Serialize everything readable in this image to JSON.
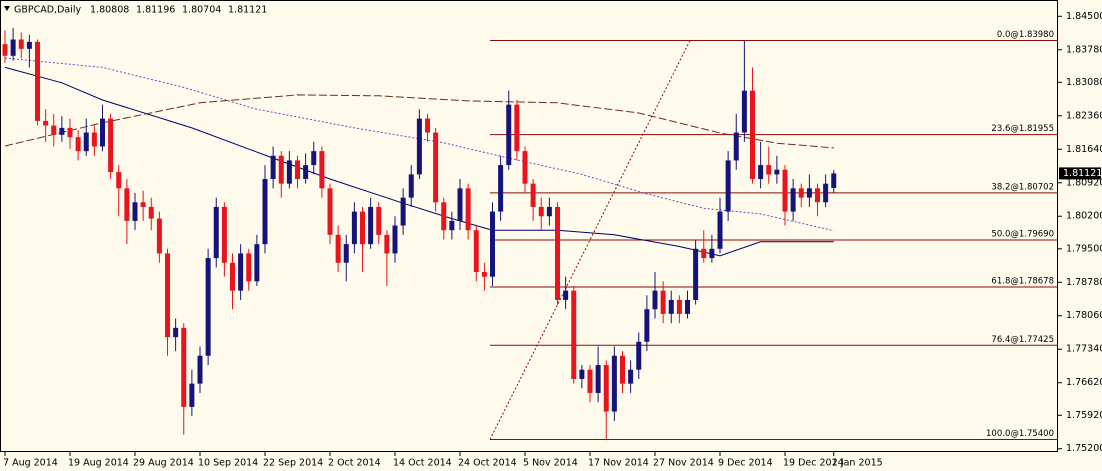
{
  "chart_data": {
    "type": "candlestick",
    "title": "GBPCAD,Daily",
    "quote": [
      1.80808,
      1.81196,
      1.80704,
      1.81121
    ],
    "current_price": 1.81121,
    "up_color": "#14147a",
    "down_color": "#e8141e",
    "categories": [
      "7 Aug 2014",
      null,
      null,
      null,
      null,
      null,
      null,
      null,
      "19 Aug 2014",
      null,
      null,
      null,
      null,
      null,
      null,
      null,
      "29 Aug 2014",
      null,
      null,
      null,
      null,
      null,
      null,
      null,
      "10 Sep 2014",
      null,
      null,
      null,
      null,
      null,
      null,
      null,
      "22 Sep 2014",
      null,
      null,
      null,
      null,
      null,
      null,
      null,
      "2 Oct 2014",
      null,
      null,
      null,
      null,
      null,
      null,
      null,
      "14 Oct 2014",
      null,
      null,
      null,
      null,
      null,
      null,
      null,
      "24 Oct 2014",
      null,
      null,
      null,
      null,
      null,
      null,
      null,
      "5 Nov 2014",
      null,
      null,
      null,
      null,
      null,
      null,
      null,
      "17 Nov 2014",
      null,
      null,
      null,
      null,
      null,
      null,
      null,
      "27 Nov 2014",
      null,
      null,
      null,
      null,
      null,
      null,
      null,
      "9 Dec 2014",
      null,
      null,
      null,
      null,
      null,
      null,
      null,
      "19 Dec 2014",
      null,
      null,
      null,
      null,
      null,
      "2 Jan 2015"
    ],
    "open": [
      1.839,
      1.8365,
      1.84,
      1.838,
      1.8395,
      1.8225,
      1.8215,
      1.8195,
      1.821,
      1.819,
      1.816,
      1.82,
      1.817,
      1.823,
      1.8115,
      1.808,
      1.801,
      1.805,
      1.804,
      1.8015,
      1.794,
      1.776,
      1.778,
      1.761,
      1.766,
      1.772,
      1.793,
      1.804,
      1.792,
      1.786,
      1.794,
      1.788,
      1.796,
      1.81,
      1.815,
      1.809,
      1.814,
      1.81,
      1.813,
      1.816,
      1.808,
      1.798,
      1.792,
      1.796,
      1.803,
      1.796,
      1.804,
      1.798,
      1.794,
      1.8,
      1.806,
      1.811,
      1.823,
      1.82,
      1.805,
      1.799,
      1.801,
      1.808,
      1.799,
      1.79,
      1.789,
      1.803,
      1.813,
      1.826,
      1.816,
      1.809,
      1.804,
      1.802,
      1.804,
      1.784,
      1.786,
      1.767,
      1.769,
      1.764,
      1.77,
      1.76,
      1.772,
      1.766,
      1.769,
      1.775,
      1.782,
      1.786,
      1.781,
      1.784,
      1.781,
      1.784,
      1.795,
      1.793,
      1.795,
      1.803,
      1.814,
      1.82,
      1.829,
      1.81,
      1.813,
      1.811,
      1.812,
      1.803,
      1.808,
      1.806,
      1.808,
      1.805,
      1.80808
    ],
    "high": [
      1.842,
      1.8425,
      1.8415,
      1.841,
      1.84,
      1.825,
      1.824,
      1.8235,
      1.823,
      1.8205,
      1.823,
      1.8215,
      1.826,
      1.824,
      1.813,
      1.81,
      1.807,
      1.8075,
      1.806,
      1.803,
      1.795,
      1.78,
      1.779,
      1.769,
      1.774,
      1.795,
      1.806,
      1.805,
      1.794,
      1.796,
      1.795,
      1.798,
      1.813,
      1.817,
      1.816,
      1.816,
      1.815,
      1.8155,
      1.818,
      1.817,
      1.809,
      1.8,
      1.798,
      1.805,
      1.804,
      1.806,
      1.805,
      1.799,
      1.802,
      1.808,
      1.813,
      1.825,
      1.824,
      1.821,
      1.806,
      1.803,
      1.81,
      1.809,
      1.8,
      1.792,
      1.805,
      1.815,
      1.829,
      1.827,
      1.817,
      1.81,
      1.806,
      1.806,
      1.805,
      1.789,
      1.787,
      1.77,
      1.77,
      1.774,
      1.771,
      1.774,
      1.773,
      1.771,
      1.777,
      1.785,
      1.79,
      1.788,
      1.786,
      1.785,
      1.786,
      1.797,
      1.799,
      1.798,
      1.806,
      1.816,
      1.824,
      1.8398,
      1.834,
      1.818,
      1.817,
      1.815,
      1.813,
      1.81,
      1.809,
      1.811,
      1.809,
      1.811,
      1.81196
    ],
    "low": [
      1.835,
      1.8355,
      1.836,
      1.834,
      1.8215,
      1.818,
      1.817,
      1.818,
      1.8165,
      1.814,
      1.815,
      1.815,
      1.816,
      1.81,
      1.802,
      1.796,
      1.799,
      1.801,
      1.799,
      1.792,
      1.772,
      1.773,
      1.755,
      1.759,
      1.764,
      1.77,
      1.791,
      1.789,
      1.782,
      1.784,
      1.786,
      1.787,
      1.794,
      1.808,
      1.806,
      1.808,
      1.808,
      1.809,
      1.811,
      1.806,
      1.796,
      1.79,
      1.788,
      1.794,
      1.79,
      1.795,
      1.796,
      1.787,
      1.792,
      1.798,
      1.804,
      1.81,
      1.818,
      1.803,
      1.797,
      1.797,
      1.799,
      1.797,
      1.788,
      1.786,
      1.787,
      1.801,
      1.812,
      1.814,
      1.807,
      1.801,
      1.799,
      1.8,
      1.783,
      1.782,
      1.766,
      1.765,
      1.762,
      1.762,
      1.754,
      1.758,
      1.764,
      1.764,
      1.767,
      1.773,
      1.78,
      1.779,
      1.779,
      1.779,
      1.78,
      1.783,
      1.792,
      1.792,
      1.794,
      1.801,
      1.812,
      1.818,
      1.809,
      1.808,
      1.809,
      1.809,
      1.8,
      1.801,
      1.804,
      1.804,
      1.802,
      1.804,
      1.80704
    ],
    "close": [
      1.8365,
      1.84,
      1.838,
      1.8395,
      1.8225,
      1.8215,
      1.8195,
      1.821,
      1.819,
      1.816,
      1.82,
      1.817,
      1.823,
      1.8115,
      1.808,
      1.801,
      1.805,
      1.804,
      1.8015,
      1.794,
      1.776,
      1.778,
      1.761,
      1.766,
      1.772,
      1.793,
      1.804,
      1.792,
      1.786,
      1.794,
      1.788,
      1.796,
      1.81,
      1.815,
      1.809,
      1.814,
      1.81,
      1.813,
      1.816,
      1.808,
      1.798,
      1.792,
      1.796,
      1.803,
      1.796,
      1.804,
      1.798,
      1.794,
      1.8,
      1.806,
      1.811,
      1.823,
      1.82,
      1.805,
      1.799,
      1.801,
      1.808,
      1.799,
      1.79,
      1.789,
      1.803,
      1.813,
      1.826,
      1.816,
      1.809,
      1.804,
      1.802,
      1.804,
      1.784,
      1.786,
      1.767,
      1.769,
      1.764,
      1.77,
      1.76,
      1.772,
      1.766,
      1.769,
      1.775,
      1.782,
      1.786,
      1.781,
      1.784,
      1.781,
      1.784,
      1.795,
      1.793,
      1.795,
      1.803,
      1.814,
      1.82,
      1.829,
      1.81,
      1.813,
      1.811,
      1.812,
      1.803,
      1.808,
      1.806,
      1.808,
      1.805,
      1.809,
      1.81121
    ],
    "lines": [
      {
        "color": "#000066",
        "dash": "none",
        "x": [
          0,
          7,
          12,
          23,
          33,
          40,
          49,
          55,
          60,
          68,
          75,
          83,
          88,
          93,
          102
        ],
        "values": [
          1.834,
          1.8307,
          1.827,
          1.821,
          1.8145,
          1.81,
          1.8048,
          1.8015,
          1.799,
          1.799,
          1.798,
          1.7955,
          1.7935,
          1.7965,
          1.7965
        ]
      },
      {
        "color": "#7b3fd0",
        "dash": "2,2",
        "x": [
          0,
          12,
          22,
          31,
          43,
          54,
          62,
          71,
          79,
          86,
          93,
          102
        ],
        "values": [
          1.836,
          1.834,
          1.8297,
          1.825,
          1.821,
          1.8178,
          1.8145,
          1.811,
          1.8068,
          1.8037,
          1.8025,
          1.7989
        ]
      },
      {
        "color": "#6b2e1e",
        "dash": "8,3",
        "x": [
          0,
          12,
          24,
          36,
          46,
          57,
          68,
          78,
          88,
          95,
          102
        ],
        "values": [
          1.8171,
          1.8221,
          1.8264,
          1.8281,
          1.8279,
          1.8268,
          1.8264,
          1.8242,
          1.8199,
          1.8177,
          1.8167
        ]
      }
    ],
    "fibonacci": {
      "color": "#8b0a0a",
      "levels": [
        {
          "value": 1.8398,
          "label": "0.0@1.83980"
        },
        {
          "value": 1.81955,
          "label": "23.6@1.81955"
        },
        {
          "value": 1.80702,
          "label": "38.2@1.80702"
        },
        {
          "value": 1.7969,
          "label": "50.0@1.79690"
        },
        {
          "value": 1.78678,
          "label": "61.8@1.78678"
        },
        {
          "value": 1.77425,
          "label": "76.4@1.77425"
        },
        {
          "value": 1.754,
          "label": "100.0@1.75400"
        }
      ]
    },
    "ylim": [
      1.7513,
      1.8485
    ],
    "yticks": [
      {
        "value": 1.845,
        "label": "1.84500"
      },
      {
        "value": 1.8378,
        "label": "1.83780"
      },
      {
        "value": 1.8308,
        "label": "1.83080"
      },
      {
        "value": 1.8236,
        "label": "1.82360"
      },
      {
        "value": 1.8164,
        "label": "1.81640"
      },
      {
        "value": 1.8092,
        "label": "1.80920"
      },
      {
        "value": 1.802,
        "label": "1.80200"
      },
      {
        "value": 1.795,
        "label": "1.79500"
      },
      {
        "value": 1.7878,
        "label": "1.78780"
      },
      {
        "value": 1.7806,
        "label": "1.78060"
      },
      {
        "value": 1.7734,
        "label": "1.77340"
      },
      {
        "value": 1.7662,
        "label": "1.76620"
      },
      {
        "value": 1.7592,
        "label": "1.75920"
      },
      {
        "value": 1.752,
        "label": "1.75200"
      }
    ]
  }
}
